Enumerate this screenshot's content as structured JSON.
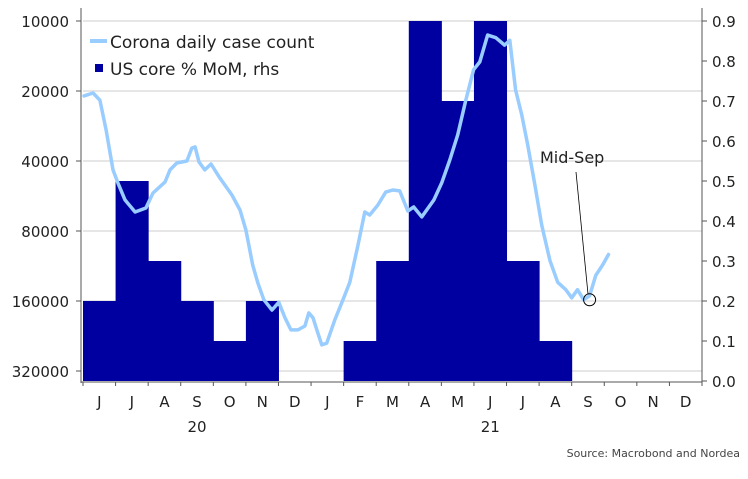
{
  "chart_data": {
    "type": "bar+line",
    "title": "",
    "legend": {
      "position": "top-left",
      "entries": [
        "Corona daily case count",
        "US core % MoM, rhs"
      ]
    },
    "colors": {
      "line": "#99CCFF",
      "bars": "#0000A0",
      "grid": "#DDDDDD",
      "axis": "#555555"
    },
    "x": {
      "unit": "months since Jun 2020",
      "month_labels": [
        "J",
        "J",
        "A",
        "S",
        "O",
        "N",
        "D",
        "J",
        "F",
        "M",
        "A",
        "M",
        "J",
        "J",
        "A",
        "S",
        "O",
        "N",
        "D"
      ],
      "year_labels": [
        {
          "label": "20",
          "month_index": 3.5
        },
        {
          "label": "21",
          "month_index": 12.5
        }
      ]
    },
    "left_axis": {
      "scale": "log2",
      "inverted": true,
      "ticks": [
        "10000",
        "20000",
        "40000",
        "80000",
        "160000",
        "320000"
      ],
      "range": [
        10000,
        335000
      ]
    },
    "right_axis": {
      "ticks": [
        "0.0",
        "0.1",
        "0.2",
        "0.3",
        "0.4",
        "0.5",
        "0.6",
        "0.7",
        "0.8",
        "0.9"
      ],
      "range": [
        0,
        0.9
      ]
    },
    "series": [
      {
        "name": "US core % MoM, rhs",
        "type": "bar",
        "axis": "right",
        "values": [
          0.2,
          0.5,
          0.3,
          0.2,
          0.1,
          0.2,
          0.0,
          0.0,
          0.1,
          0.3,
          0.9,
          0.7,
          0.9,
          0.3,
          0.1
        ]
      },
      {
        "name": "Corona daily case count",
        "type": "line",
        "axis": "left",
        "points": [
          [
            0.03,
            21000
          ],
          [
            0.31,
            20400
          ],
          [
            0.52,
            21900
          ],
          [
            0.71,
            29400
          ],
          [
            0.92,
            43700
          ],
          [
            1.07,
            49700
          ],
          [
            1.29,
            58800
          ],
          [
            1.6,
            66300
          ],
          [
            1.93,
            63700
          ],
          [
            2.15,
            54900
          ],
          [
            2.52,
            49200
          ],
          [
            2.67,
            43700
          ],
          [
            2.88,
            40800
          ],
          [
            3.19,
            40000
          ],
          [
            3.34,
            35200
          ],
          [
            3.44,
            34800
          ],
          [
            3.56,
            40400
          ],
          [
            3.74,
            43700
          ],
          [
            3.93,
            41200
          ],
          [
            4.2,
            47300
          ],
          [
            4.57,
            56000
          ],
          [
            4.82,
            65000
          ],
          [
            5.0,
            79200
          ],
          [
            5.21,
            112000
          ],
          [
            5.37,
            134000
          ],
          [
            5.55,
            158000
          ],
          [
            5.8,
            175000
          ],
          [
            6.01,
            162000
          ],
          [
            6.2,
            189000
          ],
          [
            6.38,
            213000
          ],
          [
            6.6,
            213000
          ],
          [
            6.81,
            205000
          ],
          [
            6.93,
            180000
          ],
          [
            7.06,
            189000
          ],
          [
            7.21,
            220000
          ],
          [
            7.33,
            247000
          ],
          [
            7.48,
            243000
          ],
          [
            7.73,
            193000
          ],
          [
            7.98,
            158000
          ],
          [
            8.19,
            133000
          ],
          [
            8.44,
            91900
          ],
          [
            8.65,
            66300
          ],
          [
            8.8,
            68300
          ],
          [
            9.05,
            61900
          ],
          [
            9.29,
            54400
          ],
          [
            9.51,
            53300
          ],
          [
            9.72,
            53800
          ],
          [
            9.97,
            65600
          ],
          [
            10.15,
            63100
          ],
          [
            10.4,
            69600
          ],
          [
            10.77,
            58800
          ],
          [
            11.01,
            49700
          ],
          [
            11.26,
            39600
          ],
          [
            11.5,
            30900
          ],
          [
            11.75,
            21900
          ],
          [
            11.99,
            16200
          ],
          [
            12.18,
            15000
          ],
          [
            12.42,
            11500
          ],
          [
            12.67,
            11800
          ],
          [
            12.94,
            12700
          ],
          [
            13.1,
            12100
          ],
          [
            13.28,
            19800
          ],
          [
            13.47,
            25400
          ],
          [
            13.65,
            34100
          ],
          [
            13.87,
            50700
          ],
          [
            14.08,
            75400
          ],
          [
            14.33,
            107000
          ],
          [
            14.57,
            133000
          ],
          [
            14.82,
            143000
          ],
          [
            15.0,
            155000
          ],
          [
            15.18,
            143000
          ],
          [
            15.37,
            158000
          ],
          [
            15.55,
            152000
          ],
          [
            15.74,
            124000
          ],
          [
            15.95,
            112000
          ],
          [
            16.13,
            101000
          ]
        ]
      }
    ],
    "annotations": [
      {
        "text": "Mid-Sep",
        "month_index": 15.55,
        "value": 158000
      }
    ],
    "source": "Source: Macrobond and Nordea"
  }
}
